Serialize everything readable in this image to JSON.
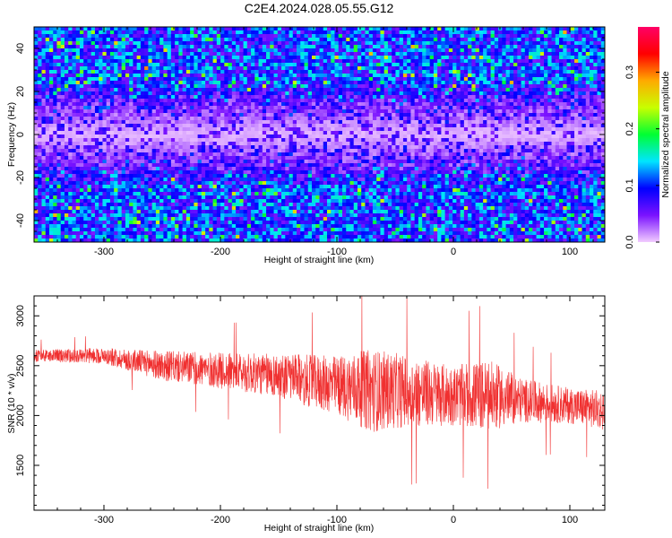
{
  "title": "C2E4.2024.028.05.55.G12",
  "chart_data": [
    {
      "type": "heatmap",
      "xlabel": "Height of straight line (km)",
      "ylabel": "Frequency (Hz)",
      "xlim": [
        -360,
        130
      ],
      "ylim": [
        -50,
        50
      ],
      "x_ticks": [
        -300,
        -200,
        -100,
        0,
        100
      ],
      "y_ticks": [
        -40,
        -20,
        0,
        20,
        40
      ],
      "colorbar": {
        "label": "Normalized spectral amplitude",
        "range": [
          0.0,
          0.38
        ],
        "ticks": [
          "0.0",
          "0.1",
          "0.2",
          "0.3"
        ],
        "colormap": [
          "#f2ccff",
          "#7a12ff",
          "#0000ff",
          "#00e5ff",
          "#00ff33",
          "#c8ff00",
          "#ffaa00",
          "#ff0000",
          "#ff0066"
        ]
      },
      "description_values": {
        "center_band_frequency_hz": [
          -20,
          20
        ],
        "center_band_amplitude": 0.02,
        "edge_amplitude": 0.12
      }
    },
    {
      "type": "line",
      "xlabel": "Height of straight line (km)",
      "ylabel": "SNR (10 * v/v)",
      "xlim": [
        -360,
        130
      ],
      "ylim": [
        1050,
        3200
      ],
      "x_ticks": [
        -300,
        -200,
        -100,
        0,
        100
      ],
      "y_ticks": [
        1500,
        2000,
        2500,
        3000
      ],
      "color": "#f03030",
      "trend_points": [
        {
          "x": -360,
          "y": 2600,
          "spread": 60
        },
        {
          "x": -300,
          "y": 2600,
          "spread": 80
        },
        {
          "x": -250,
          "y": 2500,
          "spread": 150
        },
        {
          "x": -200,
          "y": 2450,
          "spread": 180
        },
        {
          "x": -150,
          "y": 2400,
          "spread": 220
        },
        {
          "x": -100,
          "y": 2300,
          "spread": 300
        },
        {
          "x": -70,
          "y": 2250,
          "spread": 420
        },
        {
          "x": -50,
          "y": 2250,
          "spread": 380
        },
        {
          "x": 0,
          "y": 2200,
          "spread": 300
        },
        {
          "x": 30,
          "y": 2200,
          "spread": 360
        },
        {
          "x": 60,
          "y": 2150,
          "spread": 220
        },
        {
          "x": 100,
          "y": 2100,
          "spread": 180
        },
        {
          "x": 130,
          "y": 2050,
          "spread": 200
        }
      ]
    }
  ]
}
